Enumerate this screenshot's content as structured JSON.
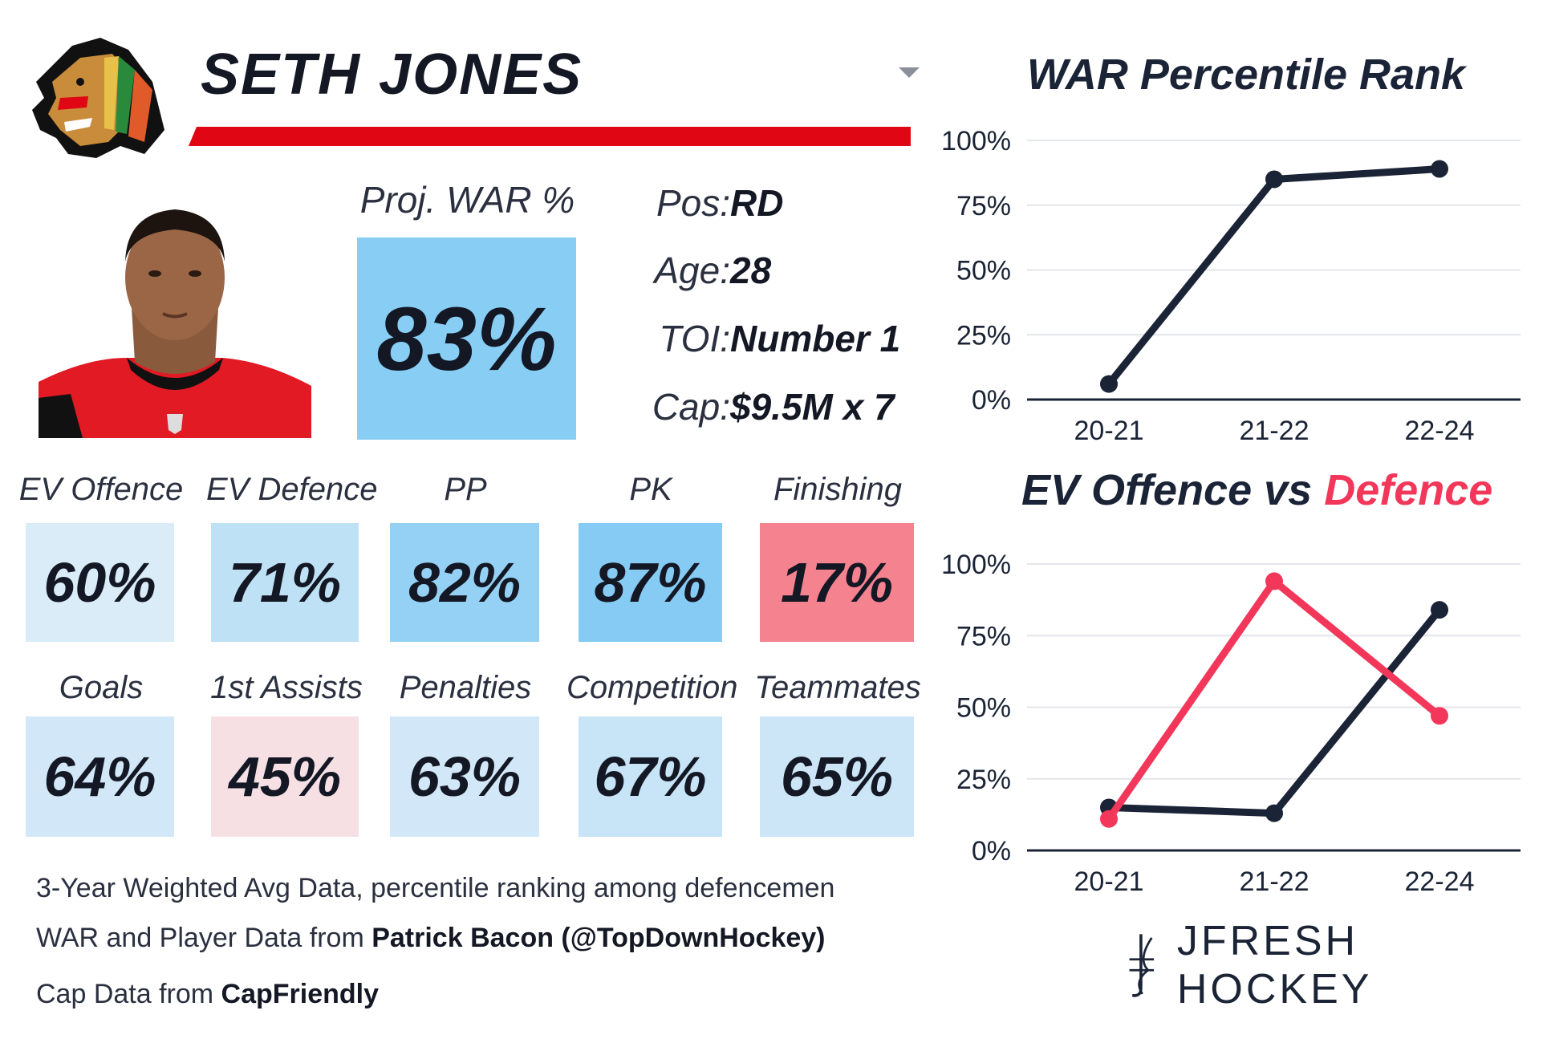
{
  "player": {
    "name": "SETH JONES"
  },
  "proj_war": {
    "label": "Proj. WAR %",
    "value": "83%"
  },
  "info": [
    {
      "label": "Pos:",
      "value": "RD"
    },
    {
      "label": "Age:",
      "value": "28"
    },
    {
      "label": "TOI:",
      "value": "Number 1"
    },
    {
      "label": "Cap:",
      "value": "$9.5M x 7"
    }
  ],
  "tiles_row1": [
    {
      "label": "EV Offence",
      "value": "60%",
      "color": "#d9ecf8"
    },
    {
      "label": "EV Defence",
      "value": "71%",
      "color": "#bfe1f6"
    },
    {
      "label": "PP",
      "value": "82%",
      "color": "#94d1f4"
    },
    {
      "label": "PK",
      "value": "87%",
      "color": "#86cbf3"
    },
    {
      "label": "Finishing",
      "value": "17%",
      "color": "#f5838f"
    }
  ],
  "tiles_row2": [
    {
      "label": "Goals",
      "value": "64%",
      "color": "#d2e8f8"
    },
    {
      "label": "1st Assists",
      "value": "45%",
      "color": "#f6e0e4"
    },
    {
      "label": "Penalties",
      "value": "63%",
      "color": "#d2e8f8"
    },
    {
      "label": "Competition",
      "value": "67%",
      "color": "#c8e4f7"
    },
    {
      "label": "Teammates",
      "value": "65%",
      "color": "#cde6f7"
    }
  ],
  "footer": {
    "line1": "3-Year Weighted Avg Data, percentile ranking among defencemen",
    "line2_prefix": "WAR and Player Data from ",
    "line2_bold": "Patrick Bacon (@TopDownHockey)",
    "line3_prefix": "Cap Data from ",
    "line3_bold": "CapFriendly"
  },
  "brand": {
    "name": "JFRESH HOCKEY"
  },
  "colors": {
    "navy": "#1b2436",
    "red": "#f2375a",
    "header_red": "#e10613"
  },
  "chart_data": [
    {
      "type": "line",
      "title": "WAR Percentile Rank",
      "categories": [
        "20-21",
        "21-22",
        "22-24"
      ],
      "series": [
        {
          "name": "WAR",
          "color": "#1b2436",
          "values": [
            6,
            85,
            89
          ]
        }
      ],
      "ylim": [
        0,
        100
      ],
      "yticks": [
        "0%",
        "25%",
        "50%",
        "75%",
        "100%"
      ],
      "grid": true
    },
    {
      "type": "line",
      "title": "EV Offence vs Defence",
      "title_parts": [
        "EV Offence",
        "vs",
        "Defence"
      ],
      "categories": [
        "20-21",
        "21-22",
        "22-24"
      ],
      "series": [
        {
          "name": "EV Offence",
          "color": "#1b2436",
          "values": [
            15,
            13,
            84
          ]
        },
        {
          "name": "EV Defence",
          "color": "#f2375a",
          "values": [
            11,
            94,
            47
          ]
        }
      ],
      "ylim": [
        0,
        100
      ],
      "yticks": [
        "0%",
        "25%",
        "50%",
        "75%",
        "100%"
      ],
      "grid": true
    }
  ]
}
